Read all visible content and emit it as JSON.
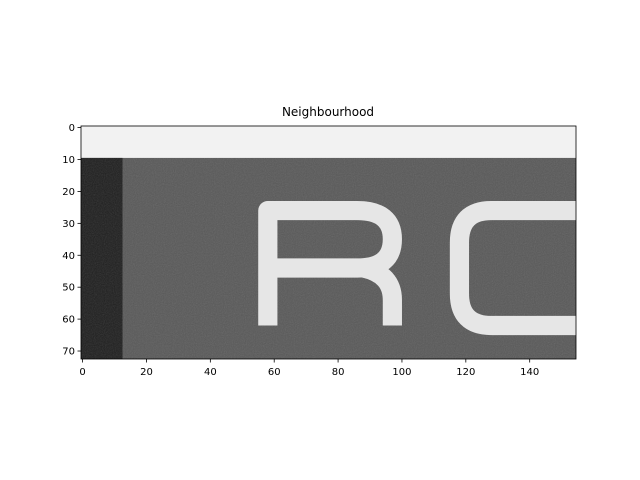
{
  "chart_data": {
    "type": "heatmap",
    "title": "Neighbourhood",
    "xlabel": "",
    "ylabel": "",
    "xlim": [
      0,
      155
    ],
    "ylim": [
      72.5,
      -0.5
    ],
    "x_ticks": [
      "0",
      "20",
      "40",
      "60",
      "80",
      "100",
      "120",
      "140"
    ],
    "y_ticks": [
      "0",
      "10",
      "20",
      "30",
      "40",
      "50",
      "60",
      "70"
    ],
    "colormap": "gray",
    "grid": false,
    "image_content": {
      "description_text": "RC",
      "background_top_band_rows": [
        0,
        9
      ],
      "dark_left_band_cols": [
        0,
        12
      ],
      "top_band_color": "#f2f2f2",
      "sign_color": "#585858",
      "left_band_color": "#1e1e1e",
      "letter_color": "#e6e6e6"
    }
  }
}
